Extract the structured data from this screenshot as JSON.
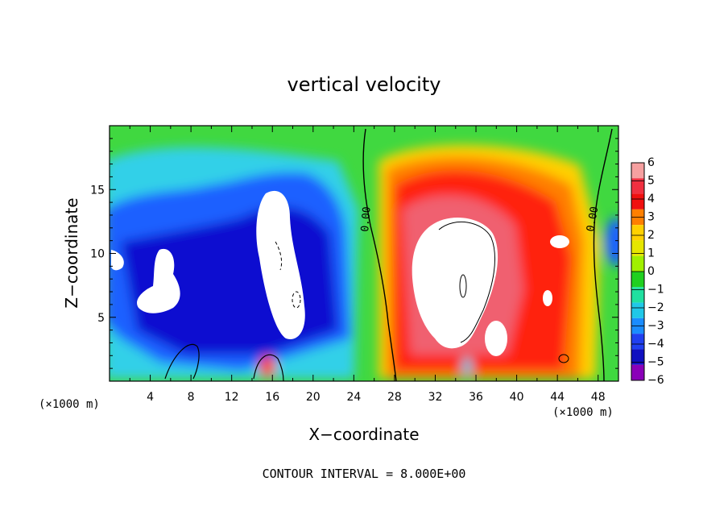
{
  "chart_data": {
    "type": "heatmap",
    "title": "vertical velocity",
    "xlabel": "X−coordinate",
    "ylabel": "Z−coordinate",
    "x_unit_left": "(×1000 m)",
    "x_unit_right": "(×1000 m)",
    "footer": "CONTOUR INTERVAL = 8.000E+00",
    "xlim": [
      0,
      50
    ],
    "ylim": [
      0,
      20
    ],
    "x_ticks": [
      4,
      8,
      12,
      16,
      20,
      24,
      28,
      32,
      36,
      40,
      44,
      48
    ],
    "y_ticks": [
      5,
      10,
      15
    ],
    "contour_labels": [
      "0.00",
      "0.00"
    ],
    "colorbar": {
      "levels": [
        6,
        5,
        4,
        3,
        2,
        1,
        0,
        "−1",
        "−2",
        "−3",
        "−4",
        "−5",
        "−6"
      ],
      "colors": [
        "#f6a0a0",
        "#f03040",
        "#f01010",
        "#ff7f00",
        "#ffd000",
        "#e6e600",
        "#a0f000",
        "#20d020",
        "#20e0a0",
        "#20c8e8",
        "#1a8cff",
        "#2040f0",
        "#1010c0",
        "#8a00b8"
      ]
    }
  }
}
